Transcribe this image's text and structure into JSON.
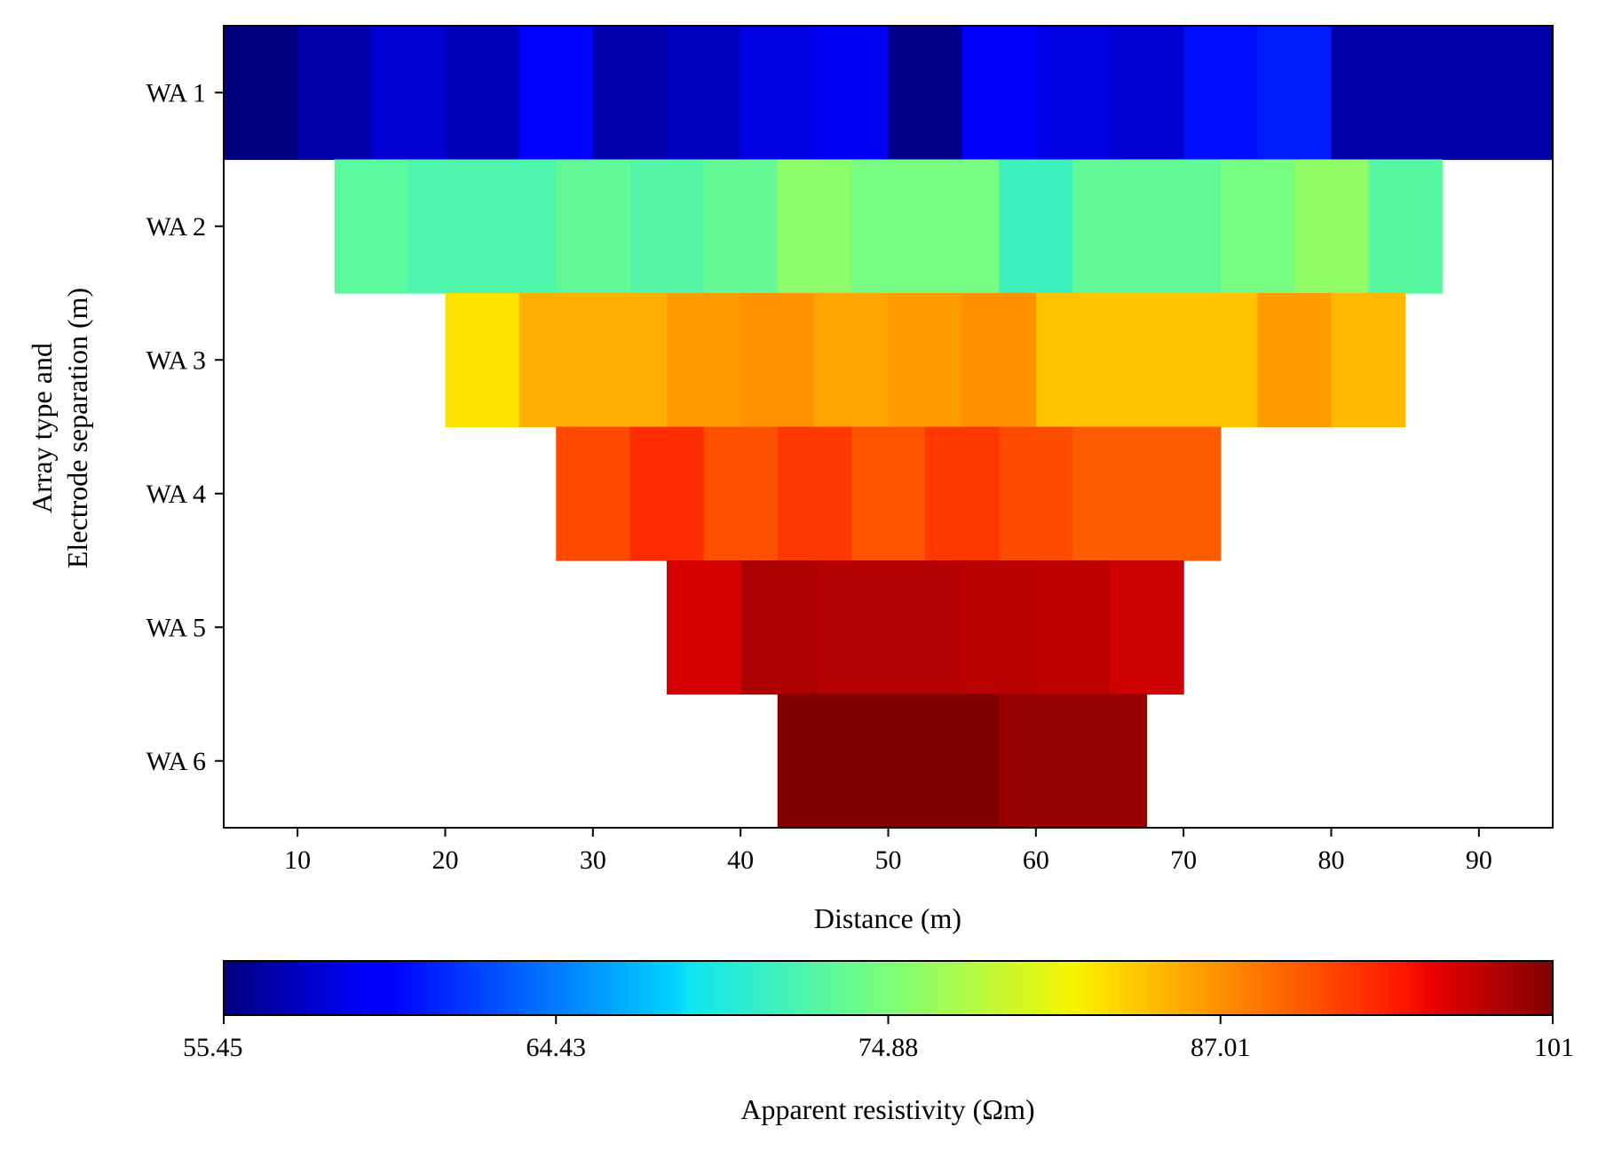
{
  "chart_data": {
    "type": "heatmap",
    "xlabel": "Distance (m)",
    "ylabel_lines": [
      "Array type and",
      "Electrode separation (m)"
    ],
    "xlim": [
      5,
      95
    ],
    "x_ticks": [
      10,
      20,
      30,
      40,
      50,
      60,
      70,
      80,
      90
    ],
    "rows": [
      {
        "label": "WA 1",
        "x_start": 5,
        "cell_width": 5,
        "values": [
          55.45,
          56.8,
          58.0,
          57.2,
          60.0,
          56.9,
          57.5,
          58.5,
          59.0,
          55.8,
          59.5,
          58.6,
          58.0,
          60.5,
          61.0,
          56.8,
          56.8,
          56.8
        ]
      },
      {
        "label": "WA 2",
        "x_start": 12.5,
        "cell_width": 5,
        "values": [
          73.0,
          72.3,
          72.3,
          73.3,
          72.6,
          73.5,
          75.8,
          74.5,
          74.5,
          71.3,
          73.3,
          73.3,
          74.5,
          76.0,
          72.8
        ]
      },
      {
        "label": "WA 3",
        "x_start": 20,
        "cell_width": 5,
        "values": [
          82.5,
          85.3,
          85.3,
          86.3,
          86.9,
          85.8,
          86.3,
          87.0,
          84.2,
          84.2,
          84.2,
          86.3,
          84.8
        ]
      },
      {
        "label": "WA 4",
        "x_start": 27.5,
        "cell_width": 5,
        "values": [
          91.5,
          93.3,
          91.0,
          92.6,
          90.8,
          92.5,
          91.3,
          90.3,
          90.3
        ]
      },
      {
        "label": "WA 5",
        "x_start": 35,
        "cell_width": 5,
        "values": [
          96.8,
          98.8,
          98.5,
          98.5,
          98.2,
          98.0,
          97.2
        ]
      },
      {
        "label": "WA 6",
        "x_start": 42.5,
        "cell_width": 5,
        "values": [
          101,
          101,
          101,
          100.0,
          100.0
        ]
      }
    ],
    "colormap": "jet",
    "colorbar": {
      "label": "Apparent resistivity (Ωm)",
      "tick_labels": [
        "55.45",
        "64.43",
        "74.88",
        "87.01",
        "101"
      ],
      "tick_values": [
        55.45,
        64.43,
        74.88,
        87.01,
        101
      ],
      "placement": "bottom"
    },
    "grid": false
  }
}
